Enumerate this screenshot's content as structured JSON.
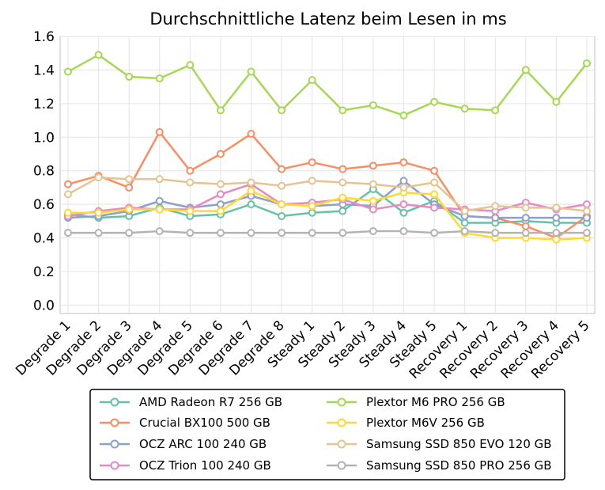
{
  "chart_data": {
    "type": "line",
    "title": "Durchschnittliche Latenz beim Lesen in ms",
    "xlabel": "",
    "ylabel": "",
    "ylim": [
      -0.05,
      1.6
    ],
    "yticks": [
      "0.0",
      "0.2",
      "0.4",
      "0.6",
      "0.8",
      "1.0",
      "1.2",
      "1.4",
      "1.6"
    ],
    "grid": true,
    "legend_position": "bottom",
    "categories": [
      "Degrade 1",
      "Degrade 2",
      "Degrade 3",
      "Degrade 4",
      "Degrade 5",
      "Degrade 6",
      "Degrade 7",
      "Degrade 8",
      "Steady 1",
      "Steady 2",
      "Steady 3",
      "Steady 4",
      "Steady 5",
      "Recovery 1",
      "Recovery 2",
      "Recovery 3",
      "Recovery 4",
      "Recovery 5"
    ],
    "series": [
      {
        "name": "AMD Radeon R7 256 GB",
        "color": "#66c2a5",
        "values": [
          0.54,
          0.52,
          0.53,
          0.58,
          0.53,
          0.54,
          0.6,
          0.53,
          0.55,
          0.56,
          0.69,
          0.55,
          0.62,
          0.49,
          0.49,
          0.5,
          0.49,
          0.49
        ]
      },
      {
        "name": "Crucial BX100 500 GB",
        "color": "#fc8d62",
        "values": [
          0.72,
          0.77,
          0.7,
          1.03,
          0.8,
          0.9,
          1.02,
          0.81,
          0.85,
          0.81,
          0.83,
          0.85,
          0.8,
          0.53,
          0.52,
          0.47,
          0.4,
          0.53
        ]
      },
      {
        "name": "OCZ ARC 100 240 GB",
        "color": "#8da0cb",
        "values": [
          0.52,
          0.53,
          0.56,
          0.62,
          0.58,
          0.6,
          0.65,
          0.6,
          0.59,
          0.6,
          0.59,
          0.74,
          0.6,
          0.53,
          0.52,
          0.52,
          0.52,
          0.52
        ]
      },
      {
        "name": "OCZ Trion 100 240 GB",
        "color": "#e78ac3",
        "values": [
          0.53,
          0.56,
          0.58,
          0.57,
          0.57,
          0.66,
          0.72,
          0.6,
          0.61,
          0.63,
          0.57,
          0.6,
          0.58,
          0.57,
          0.56,
          0.61,
          0.57,
          0.6
        ]
      },
      {
        "name": "Plextor M6 PRO 256 GB",
        "color": "#a6d854",
        "values": [
          1.39,
          1.49,
          1.36,
          1.35,
          1.43,
          1.16,
          1.39,
          1.16,
          1.34,
          1.16,
          1.19,
          1.13,
          1.21,
          1.17,
          1.16,
          1.4,
          1.21,
          1.44
        ]
      },
      {
        "name": "Plextor M6V 256 GB",
        "color": "#ffd92f",
        "values": [
          0.55,
          0.55,
          0.57,
          0.57,
          0.56,
          0.56,
          0.68,
          0.6,
          0.59,
          0.64,
          0.62,
          0.67,
          0.66,
          0.43,
          0.4,
          0.4,
          0.39,
          0.4
        ]
      },
      {
        "name": "Samsung SSD 850 EVO 120 GB",
        "color": "#e5c494",
        "values": [
          0.66,
          0.76,
          0.75,
          0.75,
          0.73,
          0.72,
          0.73,
          0.71,
          0.74,
          0.73,
          0.72,
          0.7,
          0.73,
          0.56,
          0.59,
          0.58,
          0.58,
          0.56
        ]
      },
      {
        "name": "Samsung SSD 850 PRO 256 GB",
        "color": "#b3b3b3",
        "values": [
          0.43,
          0.43,
          0.43,
          0.44,
          0.43,
          0.43,
          0.43,
          0.43,
          0.43,
          0.43,
          0.44,
          0.44,
          0.43,
          0.44,
          0.43,
          0.43,
          0.43,
          0.43
        ]
      }
    ]
  }
}
